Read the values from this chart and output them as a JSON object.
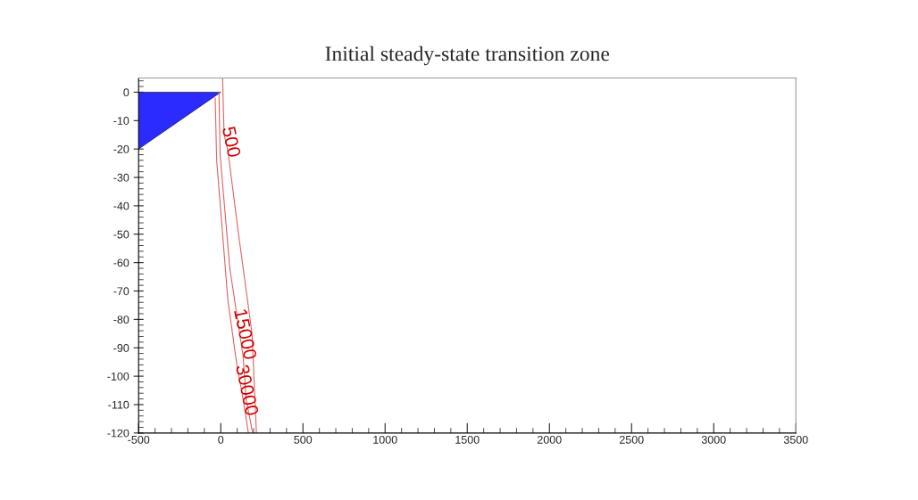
{
  "chart_data": {
    "type": "line",
    "title": "Initial steady-state transition zone",
    "xlim": [
      -500,
      3500
    ],
    "xticks": [
      -500,
      0,
      500,
      1000,
      1500,
      2000,
      2500,
      3000,
      3500
    ],
    "ylim": [
      -120,
      5
    ],
    "yticks": [
      0,
      -10,
      -20,
      -30,
      -40,
      -50,
      -60,
      -70,
      -80,
      -90,
      -100,
      -110,
      -120
    ],
    "grid": false,
    "legend": false,
    "series": [
      {
        "type": "area",
        "color": "#2b2bff",
        "x": [
          -500,
          0
        ],
        "values": [
          -20,
          0
        ]
      },
      {
        "name": "500",
        "color": "#e06060",
        "x": [
          11,
          20,
          43,
          109,
          190,
          217
        ],
        "values": [
          5,
          -14.7,
          -20.5,
          -50.3,
          -85,
          -120
        ]
      },
      {
        "name": "15000",
        "color": "#e06060",
        "x": [
          -11,
          -4,
          55,
          136,
          154,
          194
        ],
        "values": [
          0,
          -22,
          -62,
          -93,
          -108,
          -120
        ]
      },
      {
        "name": "30000",
        "color": "#e06060",
        "x": [
          -34,
          -25,
          43,
          100,
          127,
          168
        ],
        "values": [
          -2,
          -24,
          -73,
          -97,
          -105,
          -120
        ]
      }
    ]
  }
}
